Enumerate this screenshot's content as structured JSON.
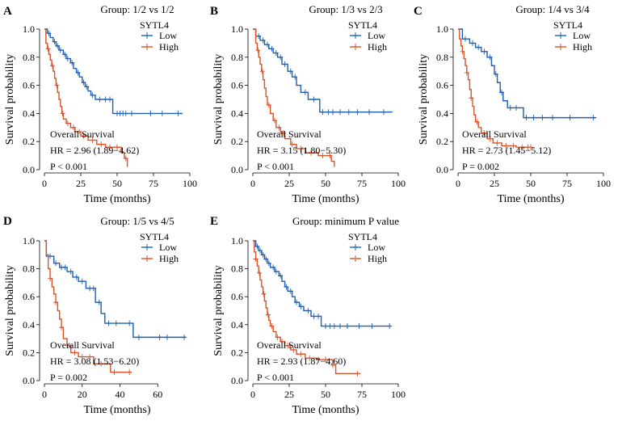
{
  "colors": {
    "low": "#1f5fae",
    "high": "#d9532a"
  },
  "chart_data": [
    {
      "type": "line",
      "panel": "A",
      "title": "Group: 1/2 vs 1/2",
      "xlabel": "Time (months)",
      "ylabel": "Survival probability",
      "xlim": [
        0,
        100
      ],
      "ylim": [
        0,
        1
      ],
      "x_ticks": [
        "0",
        "25",
        "50",
        "75",
        "100"
      ],
      "y_ticks": [
        "0.0",
        "0.2",
        "0.4",
        "0.6",
        "0.8",
        "1.0"
      ],
      "legend": {
        "title": "SYTL4",
        "labels": [
          "Low",
          "High"
        ]
      },
      "annotation": [
        "Overall Survival",
        "HR = 2.96 (1.89−4.62)",
        "P < 0.001"
      ],
      "series": [
        {
          "name": "Low",
          "color_key": "low",
          "steps": [
            [
              0,
              1
            ],
            [
              2,
              0.97
            ],
            [
              4,
              0.94
            ],
            [
              6,
              0.91
            ],
            [
              8,
              0.88
            ],
            [
              10,
              0.85
            ],
            [
              13,
              0.82
            ],
            [
              15,
              0.79
            ],
            [
              18,
              0.76
            ],
            [
              20,
              0.72
            ],
            [
              22,
              0.69
            ],
            [
              24,
              0.66
            ],
            [
              26,
              0.62
            ],
            [
              28,
              0.59
            ],
            [
              30,
              0.56
            ],
            [
              32,
              0.53
            ],
            [
              35,
              0.5
            ],
            [
              47,
              0.4
            ],
            [
              95,
              0.4
            ]
          ],
          "censor": [
            3,
            7,
            9,
            11,
            14,
            16,
            19,
            23,
            27,
            29,
            33,
            38,
            42,
            45,
            50,
            52,
            54,
            56,
            60,
            73,
            81,
            92
          ]
        },
        {
          "name": "High",
          "color_key": "high",
          "steps": [
            [
              0,
              1
            ],
            [
              1,
              0.9
            ],
            [
              2,
              0.86
            ],
            [
              3,
              0.82
            ],
            [
              4,
              0.78
            ],
            [
              5,
              0.74
            ],
            [
              6,
              0.7
            ],
            [
              7,
              0.65
            ],
            [
              8,
              0.6
            ],
            [
              9,
              0.55
            ],
            [
              10,
              0.5
            ],
            [
              11,
              0.45
            ],
            [
              12,
              0.4
            ],
            [
              13,
              0.36
            ],
            [
              15,
              0.33
            ],
            [
              18,
              0.3
            ],
            [
              21,
              0.27
            ],
            [
              25,
              0.24
            ],
            [
              30,
              0.21
            ],
            [
              36,
              0.18
            ],
            [
              42,
              0.16
            ],
            [
              53,
              0.12
            ],
            [
              55,
              0.08
            ],
            [
              57,
              0.02
            ]
          ],
          "censor": [
            2.5,
            5.5,
            8.5,
            12.5,
            16,
            20,
            24,
            27,
            33,
            39,
            45,
            50,
            56
          ]
        }
      ]
    },
    {
      "type": "line",
      "panel": "B",
      "title": "Group: 1/3 vs 2/3",
      "xlabel": "Time (months)",
      "ylabel": "Survival probability",
      "xlim": [
        0,
        100
      ],
      "ylim": [
        0,
        1
      ],
      "x_ticks": [
        "0",
        "25",
        "50",
        "75",
        "100"
      ],
      "y_ticks": [
        "0.0",
        "0.2",
        "0.4",
        "0.6",
        "0.8",
        "1.0"
      ],
      "legend": {
        "title": "SYTL4",
        "labels": [
          "Low",
          "High"
        ]
      },
      "annotation": [
        "Overall Survival",
        "HR = 3.15 (1.80−5.30)",
        "P < 0.001"
      ],
      "series": [
        {
          "name": "Low",
          "color_key": "low",
          "steps": [
            [
              0,
              1
            ],
            [
              2,
              0.95
            ],
            [
              5,
              0.92
            ],
            [
              8,
              0.89
            ],
            [
              11,
              0.86
            ],
            [
              14,
              0.83
            ],
            [
              17,
              0.8
            ],
            [
              20,
              0.75
            ],
            [
              24,
              0.7
            ],
            [
              27,
              0.66
            ],
            [
              30,
              0.6
            ],
            [
              33,
              0.55
            ],
            [
              38,
              0.5
            ],
            [
              46,
              0.41
            ],
            [
              96,
              0.41
            ]
          ],
          "censor": [
            4,
            7,
            10,
            13,
            16,
            19,
            22,
            26,
            29,
            36,
            42,
            48,
            52,
            55,
            60,
            66,
            72,
            80,
            90
          ]
        },
        {
          "name": "High",
          "color_key": "high",
          "steps": [
            [
              0,
              1
            ],
            [
              2,
              0.9
            ],
            [
              3,
              0.85
            ],
            [
              4,
              0.8
            ],
            [
              5,
              0.75
            ],
            [
              6,
              0.7
            ],
            [
              7,
              0.64
            ],
            [
              8,
              0.58
            ],
            [
              9,
              0.52
            ],
            [
              10,
              0.46
            ],
            [
              12,
              0.4
            ],
            [
              14,
              0.35
            ],
            [
              16,
              0.3
            ],
            [
              19,
              0.26
            ],
            [
              22,
              0.22
            ],
            [
              26,
              0.18
            ],
            [
              30,
              0.15
            ],
            [
              36,
              0.12
            ],
            [
              45,
              0.1
            ],
            [
              54,
              0.06
            ],
            [
              56,
              0.02
            ]
          ],
          "censor": [
            3.5,
            6.5,
            11,
            15,
            18,
            21,
            27,
            33,
            40,
            48,
            53
          ]
        }
      ]
    },
    {
      "type": "line",
      "panel": "C",
      "title": "Group: 1/4 vs 3/4",
      "xlabel": "Time (months)",
      "ylabel": "Survival probability",
      "xlim": [
        0,
        100
      ],
      "ylim": [
        0,
        1
      ],
      "x_ticks": [
        "0",
        "25",
        "50",
        "75",
        "100"
      ],
      "y_ticks": [
        "0.0",
        "0.2",
        "0.4",
        "0.6",
        "0.8",
        "1.0"
      ],
      "legend": {
        "title": "SYTL4",
        "labels": [
          "Low",
          "High"
        ]
      },
      "annotation": [
        "Overall Survival",
        "HR = 2.73 (1.45−5.12)",
        "P = 0.002"
      ],
      "series": [
        {
          "name": "Low",
          "color_key": "low",
          "steps": [
            [
              0,
              1
            ],
            [
              3,
              0.93
            ],
            [
              8,
              0.9
            ],
            [
              12,
              0.87
            ],
            [
              16,
              0.84
            ],
            [
              20,
              0.8
            ],
            [
              23,
              0.74
            ],
            [
              25,
              0.68
            ],
            [
              27,
              0.62
            ],
            [
              29,
              0.55
            ],
            [
              31,
              0.49
            ],
            [
              34,
              0.44
            ],
            [
              45,
              0.37
            ],
            [
              95,
              0.37
            ]
          ],
          "censor": [
            5,
            10,
            14,
            18,
            22,
            26,
            30,
            36,
            40,
            47,
            52,
            58,
            65,
            77,
            93
          ]
        },
        {
          "name": "High",
          "color_key": "high",
          "steps": [
            [
              0,
              1
            ],
            [
              1,
              0.93
            ],
            [
              2,
              0.88
            ],
            [
              3,
              0.84
            ],
            [
              4,
              0.79
            ],
            [
              5,
              0.74
            ],
            [
              6,
              0.69
            ],
            [
              7,
              0.64
            ],
            [
              8,
              0.57
            ],
            [
              9,
              0.51
            ],
            [
              10,
              0.45
            ],
            [
              11,
              0.39
            ],
            [
              12,
              0.34
            ],
            [
              14,
              0.3
            ],
            [
              16,
              0.26
            ],
            [
              20,
              0.22
            ],
            [
              24,
              0.19
            ],
            [
              30,
              0.17
            ],
            [
              40,
              0.16
            ],
            [
              50,
              0.16
            ]
          ],
          "censor": [
            3,
            6,
            9,
            13,
            18,
            22,
            27,
            33,
            38,
            44,
            48,
            50
          ]
        }
      ]
    },
    {
      "type": "line",
      "panel": "D",
      "title": "Group: 1/5 vs 4/5",
      "xlabel": "Time (months)",
      "ylabel": "Survival probability",
      "xlim": [
        0,
        77
      ],
      "ylim": [
        0,
        1
      ],
      "x_ticks": [
        "0",
        "20",
        "40",
        "60"
      ],
      "y_ticks": [
        "0.0",
        "0.2",
        "0.4",
        "0.6",
        "0.8",
        "1.0"
      ],
      "legend": {
        "title": "SYTL4",
        "labels": [
          "Low",
          "High"
        ]
      },
      "annotation": [
        "Overall Survival",
        "HR = 3.08 (1.53−6.20)",
        "P = 0.002"
      ],
      "series": [
        {
          "name": "Low",
          "color_key": "low",
          "steps": [
            [
              0,
              1
            ],
            [
              1,
              0.89
            ],
            [
              5,
              0.84
            ],
            [
              8,
              0.81
            ],
            [
              12,
              0.78
            ],
            [
              15,
              0.74
            ],
            [
              18,
              0.71
            ],
            [
              22,
              0.66
            ],
            [
              27,
              0.56
            ],
            [
              30,
              0.48
            ],
            [
              32,
              0.41
            ],
            [
              47,
              0.31
            ],
            [
              75,
              0.31
            ]
          ],
          "censor": [
            3,
            6,
            9,
            11,
            14,
            17,
            20,
            24,
            26,
            29,
            34,
            38,
            45,
            50,
            61,
            65,
            74
          ]
        },
        {
          "name": "High",
          "color_key": "high",
          "steps": [
            [
              0,
              1
            ],
            [
              1,
              0.9
            ],
            [
              2,
              0.8
            ],
            [
              3,
              0.73
            ],
            [
              4,
              0.67
            ],
            [
              5,
              0.62
            ],
            [
              6,
              0.56
            ],
            [
              7,
              0.5
            ],
            [
              8,
              0.44
            ],
            [
              9,
              0.38
            ],
            [
              10,
              0.3
            ],
            [
              12,
              0.25
            ],
            [
              14,
              0.2
            ],
            [
              18,
              0.17
            ],
            [
              26,
              0.12
            ],
            [
              35,
              0.06
            ],
            [
              46,
              0.06
            ]
          ],
          "censor": [
            3,
            6,
            9,
            13,
            16,
            20,
            24,
            30,
            37,
            45
          ]
        }
      ]
    },
    {
      "type": "line",
      "panel": "E",
      "title": "Group: minimum P value",
      "xlabel": "Time (months)",
      "ylabel": "Survival probability",
      "xlim": [
        0,
        100
      ],
      "ylim": [
        0,
        1
      ],
      "x_ticks": [
        "0",
        "25",
        "50",
        "75",
        "100"
      ],
      "y_ticks": [
        "0.0",
        "0.2",
        "0.4",
        "0.6",
        "0.8",
        "1.0"
      ],
      "legend": {
        "title": "SYTL4",
        "labels": [
          "Low",
          "High"
        ]
      },
      "annotation": [
        "Overall Survival",
        "HR = 2.93 (1.87−4.60)",
        "P < 0.001"
      ],
      "series": [
        {
          "name": "Low",
          "color_key": "low",
          "steps": [
            [
              0,
              1
            ],
            [
              2,
              0.96
            ],
            [
              4,
              0.93
            ],
            [
              6,
              0.9
            ],
            [
              8,
              0.87
            ],
            [
              10,
              0.84
            ],
            [
              12,
              0.81
            ],
            [
              15,
              0.78
            ],
            [
              18,
              0.75
            ],
            [
              20,
              0.71
            ],
            [
              22,
              0.67
            ],
            [
              24,
              0.64
            ],
            [
              27,
              0.6
            ],
            [
              29,
              0.56
            ],
            [
              32,
              0.53
            ],
            [
              35,
              0.5
            ],
            [
              40,
              0.46
            ],
            [
              47,
              0.39
            ],
            [
              95,
              0.39
            ]
          ],
          "censor": [
            3,
            5,
            7,
            9,
            11,
            14,
            16,
            19,
            23,
            26,
            30,
            33,
            38,
            42,
            45,
            50,
            53,
            56,
            60,
            65,
            73,
            82,
            94
          ]
        },
        {
          "name": "High",
          "color_key": "high",
          "steps": [
            [
              0,
              1
            ],
            [
              1,
              0.92
            ],
            [
              2,
              0.87
            ],
            [
              3,
              0.82
            ],
            [
              4,
              0.77
            ],
            [
              5,
              0.72
            ],
            [
              6,
              0.67
            ],
            [
              7,
              0.62
            ],
            [
              8,
              0.57
            ],
            [
              9,
              0.52
            ],
            [
              10,
              0.47
            ],
            [
              11,
              0.43
            ],
            [
              12,
              0.39
            ],
            [
              14,
              0.35
            ],
            [
              16,
              0.31
            ],
            [
              19,
              0.28
            ],
            [
              22,
              0.25
            ],
            [
              26,
              0.22
            ],
            [
              30,
              0.19
            ],
            [
              36,
              0.16
            ],
            [
              44,
              0.15
            ],
            [
              55,
              0.11
            ],
            [
              57,
              0.05
            ],
            [
              74,
              0.05
            ]
          ],
          "censor": [
            2,
            4.5,
            7.5,
            10.5,
            13,
            17,
            20,
            24,
            28,
            33,
            39,
            45,
            50,
            55,
            72
          ]
        }
      ]
    }
  ]
}
